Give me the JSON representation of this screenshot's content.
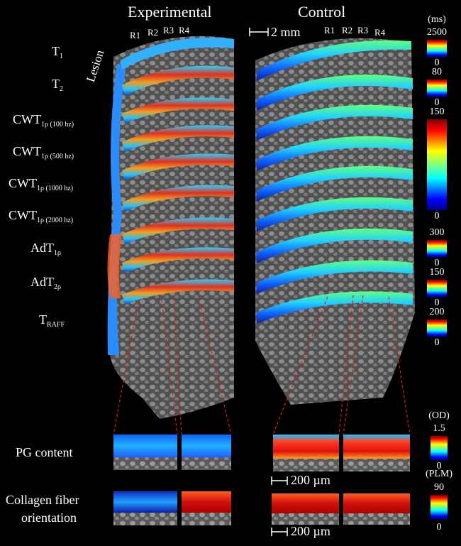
{
  "columns": {
    "experimental": "Experimental",
    "control": "Control"
  },
  "region_labels": [
    "R1",
    "R2",
    "R3",
    "R4"
  ],
  "lesion_label": "Lesion",
  "scale_bars": {
    "top": "2 mm",
    "bottom1": "200 µm",
    "bottom2": "200 µm"
  },
  "row_labels": [
    {
      "main": "T",
      "sub": "1"
    },
    {
      "main": "T",
      "sub": "2"
    },
    {
      "main": "CWT",
      "sub": "1ρ (100 hz)"
    },
    {
      "main": "CWT",
      "sub": "1ρ (500 hz)"
    },
    {
      "main": "CWT",
      "sub": "1ρ (1000 hz)"
    },
    {
      "main": "CWT",
      "sub": "1ρ (2000 hz)"
    },
    {
      "main": "AdT",
      "sub": "1ρ"
    },
    {
      "main": "AdT",
      "sub": "2ρ"
    },
    {
      "main": "T",
      "sub": "RAFF"
    }
  ],
  "bottom_rows": {
    "pg": "PG content",
    "collagen_1": "Collagen fiber",
    "collagen_2": "orientation"
  },
  "colorbars": [
    {
      "unit": "(ms)",
      "max": "2500",
      "min": "0"
    },
    {
      "max": "80",
      "min": "0"
    },
    {
      "max": "150",
      "min": "0"
    },
    {
      "max": "300",
      "min": "0"
    },
    {
      "max": "150",
      "min": "0"
    },
    {
      "max": "200",
      "min": "0"
    },
    {
      "unit": "(OD)",
      "max": "1.5",
      "min": "0"
    },
    {
      "unit": "(PLM)",
      "max": "90",
      "min": "0"
    }
  ]
}
